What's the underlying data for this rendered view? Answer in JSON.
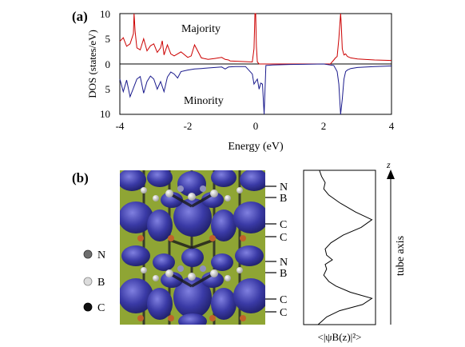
{
  "panel_a": {
    "label": "(a)",
    "ylabel": "DOS (states/eV)",
    "xlabel": "Energy (eV)",
    "majority_label": "Majority",
    "minority_label": "Minority",
    "upper_ticks": [
      "10",
      "5",
      "0"
    ],
    "lower_ticks": [
      "5",
      "10"
    ],
    "x_ticks": [
      "-4",
      "-2",
      "0",
      "2",
      "4"
    ]
  },
  "panel_b": {
    "label": "(b)",
    "legend": [
      {
        "label": "N",
        "color": "#6e6e6e"
      },
      {
        "label": "B",
        "color": "#dcdcdc"
      },
      {
        "label": "C",
        "color": "#111111"
      }
    ],
    "layer_labels": [
      "N",
      "B",
      "C",
      "C",
      "N",
      "B",
      "C",
      "C"
    ],
    "profile_xlabel": "<|ψB(z)|²>",
    "axis_label": "tube axis",
    "z_label": "z",
    "background_color": "#8fa534",
    "isosurface_color": "#3a3aa6"
  },
  "chart_data": [
    {
      "type": "line",
      "title": "",
      "xlabel": "Energy (eV)",
      "ylabel": "DOS (states/eV)",
      "xlim": [
        -4,
        4
      ],
      "ylim": [
        -10,
        10
      ],
      "grid": false,
      "series": [
        {
          "name": "Majority",
          "color": "#cc0000",
          "x": [
            -4.0,
            -3.9,
            -3.8,
            -3.7,
            -3.6,
            -3.58,
            -3.55,
            -3.5,
            -3.4,
            -3.3,
            -3.2,
            -3.1,
            -3.0,
            -2.9,
            -2.8,
            -2.75,
            -2.7,
            -2.6,
            -2.5,
            -2.4,
            -2.2,
            -2.0,
            -1.9,
            -1.8,
            -1.6,
            -1.4,
            -1.2,
            -1.0,
            -0.9,
            -0.8,
            -0.75,
            -0.1,
            -0.05,
            -0.02,
            0.0,
            0.02,
            0.05,
            0.1,
            0.2,
            0.3,
            0.4,
            2.2,
            2.3,
            2.35,
            2.4,
            2.45,
            2.5,
            2.52,
            2.55,
            2.6,
            2.65,
            2.7,
            2.8,
            3.0,
            3.5,
            4.0
          ],
          "y": [
            4.5,
            5.2,
            3.5,
            4.0,
            6.0,
            10.0,
            6.5,
            3.2,
            2.8,
            5.0,
            2.6,
            3.6,
            4.0,
            2.3,
            3.2,
            4.6,
            1.8,
            3.8,
            2.0,
            1.6,
            2.4,
            1.3,
            1.6,
            3.8,
            1.2,
            0.9,
            1.1,
            1.3,
            0.9,
            0.8,
            0.6,
            0.4,
            3.0,
            10.0,
            10.0,
            3.5,
            0.4,
            0.0,
            0.0,
            0.0,
            0.0,
            0.0,
            0.8,
            1.2,
            1.5,
            5.0,
            10.0,
            8.0,
            3.0,
            1.8,
            2.0,
            1.5,
            1.2,
            1.0,
            0.8,
            0.7
          ]
        },
        {
          "name": "Minority",
          "color": "#1a1a8c",
          "x": [
            -4.0,
            -3.9,
            -3.8,
            -3.7,
            -3.6,
            -3.5,
            -3.4,
            -3.3,
            -3.2,
            -3.1,
            -3.0,
            -2.9,
            -2.8,
            -2.7,
            -2.6,
            -2.5,
            -2.4,
            -2.3,
            -2.2,
            -2.0,
            -1.8,
            -1.6,
            -1.4,
            -1.2,
            -1.0,
            -0.9,
            -0.8,
            -0.6,
            -0.3,
            -0.1,
            -0.05,
            0.0,
            0.05,
            0.1,
            0.15,
            0.2,
            0.25,
            0.3,
            0.5,
            1.0,
            2.0,
            2.3,
            2.4,
            2.45,
            2.5,
            2.55,
            2.6,
            2.65,
            2.7,
            2.8,
            3.0,
            3.5,
            4.0
          ],
          "y": [
            -3.0,
            -5.5,
            -3.2,
            -6.5,
            -4.8,
            -3.0,
            -2.5,
            -5.8,
            -3.5,
            -2.4,
            -3.0,
            -5.0,
            -3.5,
            -5.5,
            -2.6,
            -1.6,
            -2.0,
            -2.8,
            -1.5,
            -1.2,
            -1.0,
            -0.9,
            -0.8,
            -0.7,
            -0.6,
            -1.0,
            -0.6,
            -0.5,
            -0.5,
            -2.0,
            -4.0,
            -3.5,
            -3.0,
            -5.0,
            -3.8,
            -4.0,
            -10.0,
            -0.3,
            -0.2,
            -0.1,
            0.0,
            -0.3,
            -1.5,
            -4.0,
            -10.0,
            -7.0,
            -3.0,
            -1.5,
            -1.2,
            -0.9,
            -0.7,
            -0.5,
            -0.4
          ]
        }
      ]
    },
    {
      "type": "line",
      "title": "",
      "xlabel": "<|ψB(z)|²>",
      "ylabel": "",
      "orientation": "vertical profile along tube axis",
      "xlim": [
        0,
        1
      ],
      "ylim": [
        0,
        1
      ],
      "grid": false,
      "series": [
        {
          "name": "",
          "x": [
            0.22,
            0.25,
            0.3,
            0.28,
            0.35,
            0.5,
            0.72,
            0.95,
            0.8,
            0.55,
            0.38,
            0.3,
            0.32,
            0.4,
            0.3,
            0.32,
            0.28,
            0.35,
            0.45,
            0.65,
            0.95,
            0.82,
            0.5,
            0.32,
            0.25,
            0.2
          ],
          "y": [
            1.0,
            0.96,
            0.92,
            0.88,
            0.84,
            0.79,
            0.73,
            0.68,
            0.63,
            0.58,
            0.53,
            0.49,
            0.45,
            0.42,
            0.39,
            0.36,
            0.32,
            0.28,
            0.25,
            0.21,
            0.17,
            0.13,
            0.09,
            0.05,
            0.02,
            0.0
          ]
        }
      ]
    }
  ]
}
